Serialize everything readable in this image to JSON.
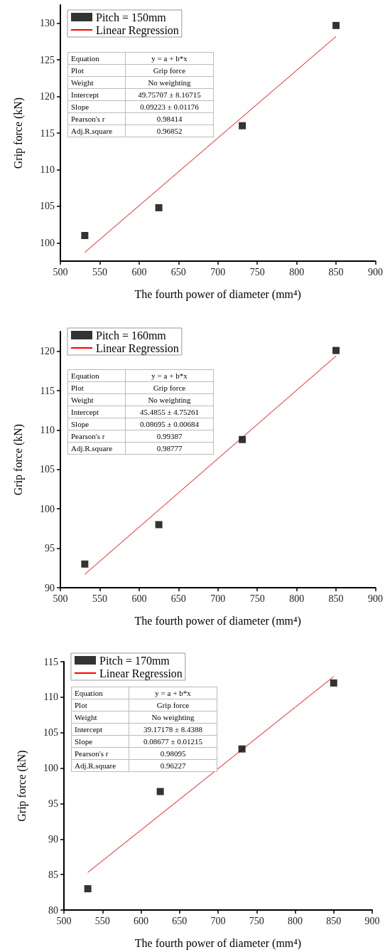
{
  "chart_data": [
    {
      "type": "scatter",
      "xlabel": "The fourth power of diameter (mm⁴)",
      "ylabel": "Grip force (kN)",
      "xlim": [
        500,
        900
      ],
      "xticks": [
        500,
        550,
        600,
        650,
        700,
        750,
        800,
        850,
        900
      ],
      "ylim": [
        97.5,
        132.5
      ],
      "yticks": [
        100,
        105,
        110,
        115,
        120,
        125,
        130
      ],
      "grid": false,
      "legend": "top left",
      "series": [
        {
          "name": "Pitch = 150mm",
          "marker": "square",
          "color": "#000000",
          "x": [
            531,
            625,
            731,
            850
          ],
          "values": [
            101,
            104.8,
            116,
            129.7
          ]
        },
        {
          "name": "Linear Regression",
          "type": "line",
          "marker": "none",
          "color": "#ff0000",
          "x": [
            531,
            850
          ],
          "values": [
            98.7,
            128.2
          ]
        }
      ],
      "annotations": [
        "Equation",
        "y = a + b*x",
        "Plot",
        "Grip force",
        "Weight",
        "No weighting",
        "Intercept",
        "49.75707 ± 8.16715",
        "Slope",
        "0.09223 ± 0.01176",
        "Pearson's r",
        "0.98414",
        "Adj.R.square",
        "0.96852"
      ]
    },
    {
      "type": "scatter",
      "xlabel": "The fourth power of diameter (mm⁴)",
      "ylabel": "Grip force (kN)",
      "xlim": [
        500,
        900
      ],
      "xticks": [
        500,
        550,
        600,
        650,
        700,
        750,
        800,
        850,
        900
      ],
      "ylim": [
        90,
        122.5
      ],
      "yticks": [
        90,
        95,
        100,
        105,
        110,
        115,
        120
      ],
      "grid": false,
      "legend": "top left",
      "series": [
        {
          "name": "Pitch = 160mm",
          "marker": "square",
          "color": "#000000",
          "x": [
            531,
            625,
            731,
            850
          ],
          "values": [
            93,
            98,
            108.8,
            120.1
          ]
        },
        {
          "name": "Linear Regression",
          "type": "line",
          "marker": "none",
          "color": "#ff0000",
          "x": [
            531,
            850
          ],
          "values": [
            91.7,
            119.4
          ]
        }
      ],
      "annotations": [
        "Equation",
        "y = a + b*x",
        "Plot",
        "Grip force",
        "Weight",
        "No weighting",
        "Intercept",
        "45.4855 ± 4.75261",
        "Slope",
        "0.08695 ± 0.00684",
        "Pearson's r",
        "0.99387",
        "Adj.R.square",
        "0.98777"
      ]
    },
    {
      "type": "scatter",
      "xlabel": "The fourth power of diameter (mm⁴)",
      "ylabel": "Grip force (kN)",
      "xlim": [
        500,
        900
      ],
      "xticks": [
        500,
        550,
        600,
        650,
        700,
        750,
        800,
        850,
        900
      ],
      "ylim": [
        80,
        115
      ],
      "yticks": [
        80,
        85,
        90,
        95,
        100,
        105,
        110,
        115
      ],
      "grid": false,
      "legend": "top left",
      "series": [
        {
          "name": "Pitch = 170mm",
          "marker": "square",
          "color": "#000000",
          "x": [
            531,
            625,
            731,
            850
          ],
          "values": [
            83,
            96.7,
            102.7,
            112
          ]
        },
        {
          "name": "Linear Regression",
          "type": "line",
          "marker": "none",
          "color": "#ff0000",
          "x": [
            531,
            850
          ],
          "values": [
            85.3,
            112.9
          ]
        }
      ],
      "annotations": [
        "Equation",
        "y = a + b*x",
        "Plot",
        "Grip force",
        "Weight",
        "No weighting",
        "Intercept",
        "39.17178 ± 8.4388",
        "Slope",
        "0.08677 ± 0.01215",
        "Pearson's r",
        "0.98095",
        "Adj.R.square",
        "0.96227"
      ]
    }
  ]
}
